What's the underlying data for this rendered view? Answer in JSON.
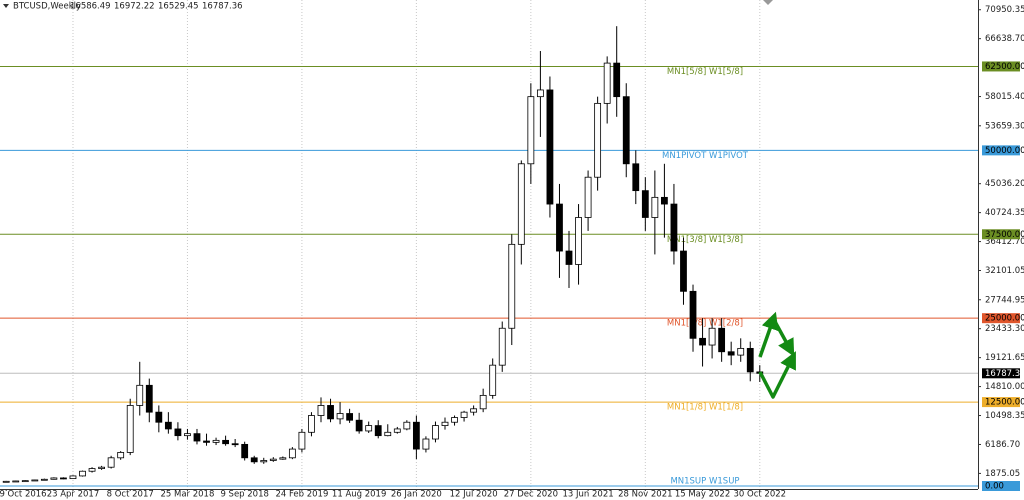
{
  "chart_data": {
    "type": "candlestick",
    "header": {
      "symbol": "BTCUSD,Weekly",
      "ohlc": [
        16586.49,
        16972.22,
        16529.45,
        16787.36
      ]
    },
    "x": [
      0,
      4,
      8,
      12,
      16,
      20,
      24,
      28,
      32,
      36,
      40,
      44,
      48,
      52,
      56,
      60,
      64,
      68,
      72,
      76,
      80,
      84,
      88,
      92,
      96,
      100,
      104,
      108,
      112,
      116,
      120,
      124,
      128,
      132,
      136,
      140,
      144,
      148,
      152,
      156,
      160,
      164,
      168,
      172,
      176,
      180,
      184,
      188,
      192,
      196,
      200,
      204,
      208,
      212,
      216,
      220,
      224,
      228,
      232,
      236,
      240,
      244,
      248,
      252,
      256,
      260,
      264,
      268,
      272,
      276,
      280,
      284,
      288,
      292,
      296,
      300,
      304,
      308,
      312,
      316
    ],
    "open": [
      650,
      700,
      750,
      800,
      900,
      1000,
      1200,
      1100,
      1500,
      2200,
      2600,
      2800,
      4200,
      5000,
      12000,
      15000,
      11000,
      9500,
      8500,
      7500,
      7800,
      6700,
      6500,
      6800,
      6300,
      6200,
      4200,
      3600,
      3800,
      4000,
      4200,
      5500,
      8000,
      10500,
      12000,
      10000,
      10800,
      9800,
      8200,
      9000,
      7500,
      8000,
      8500,
      9500,
      5500,
      7000,
      9000,
      9500,
      10200,
      11000,
      11500,
      13500,
      18000,
      23500,
      36000,
      48000,
      58000,
      59000,
      42000,
      35000,
      33000,
      40000,
      46000,
      57000,
      63000,
      58000,
      48000,
      44000,
      40000,
      43000,
      42000,
      35000,
      29000,
      22000,
      21000,
      23500,
      20000,
      19500,
      20500,
      17000
    ],
    "high": [
      760,
      800,
      850,
      950,
      1100,
      1300,
      1300,
      1600,
      2300,
      2800,
      3000,
      4500,
      5200,
      13000,
      18500,
      16000,
      12000,
      11000,
      9500,
      8500,
      8500,
      7800,
      7200,
      7500,
      7000,
      6600,
      4500,
      4200,
      4300,
      4400,
      5800,
      8500,
      11000,
      13200,
      13000,
      12500,
      11500,
      10900,
      9600,
      9800,
      9200,
      8800,
      9800,
      10500,
      7400,
      9600,
      10200,
      10500,
      11200,
      12000,
      14500,
      19000,
      24500,
      37500,
      48500,
      60000,
      64800,
      61000,
      45000,
      38000,
      42000,
      47000,
      58000,
      64000,
      68500,
      60000,
      50000,
      46000,
      47000,
      48000,
      45000,
      37000,
      30000,
      25000,
      25000,
      25000,
      21500,
      22000,
      21500,
      18000
    ],
    "low": [
      620,
      650,
      700,
      780,
      850,
      950,
      1000,
      1050,
      1400,
      2000,
      2400,
      2600,
      3900,
      4600,
      10500,
      9500,
      8000,
      7800,
      6800,
      6900,
      6200,
      6000,
      6100,
      6000,
      5800,
      3800,
      3300,
      3300,
      3600,
      3900,
      4000,
      5000,
      7400,
      9500,
      9500,
      9200,
      9400,
      7800,
      7900,
      7100,
      7400,
      7800,
      8300,
      4000,
      5000,
      6500,
      8400,
      9000,
      9600,
      10500,
      11000,
      13000,
      17000,
      21000,
      33000,
      45000,
      52000,
      40000,
      31000,
      29500,
      30000,
      38000,
      44000,
      54000,
      55000,
      46000,
      42000,
      38000,
      34500,
      37000,
      33000,
      27000,
      20000,
      17800,
      19000,
      18500,
      18000,
      18500,
      15600,
      15500
    ],
    "close": [
      700,
      750,
      800,
      900,
      1000,
      1200,
      1100,
      1500,
      2200,
      2600,
      2800,
      4200,
      5000,
      12000,
      15000,
      11000,
      9500,
      8500,
      7500,
      7800,
      6700,
      6500,
      6800,
      6300,
      6200,
      4200,
      3600,
      3800,
      4000,
      4200,
      5500,
      8000,
      10500,
      12000,
      10000,
      10800,
      9800,
      8200,
      9000,
      7500,
      8000,
      8500,
      9500,
      5500,
      7000,
      9000,
      9500,
      10200,
      11000,
      11500,
      13500,
      18000,
      23500,
      36000,
      48000,
      58000,
      59000,
      42000,
      35000,
      33000,
      40000,
      46000,
      57000,
      63000,
      58000,
      48000,
      44000,
      40000,
      43000,
      42000,
      35000,
      29000,
      22000,
      21000,
      23500,
      20000,
      19500,
      20500,
      17000,
      16787.36
    ],
    "xlim": [
      -2.6,
      407.5
    ],
    "xticks": [
      {
        "value": 0,
        "label": "9 Oct 2016"
      },
      {
        "value": 28,
        "label": "23 Apr 2017"
      },
      {
        "value": 52,
        "label": "8 Oct 2017"
      },
      {
        "value": 76,
        "label": "25 Mar 2018"
      },
      {
        "value": 100,
        "label": "9 Sep 2018"
      },
      {
        "value": 124,
        "label": "24 Feb 2019"
      },
      {
        "value": 148,
        "label": "11 Aug 2019"
      },
      {
        "value": 172,
        "label": "26 Jan 2020"
      },
      {
        "value": 196,
        "label": "12 Jul 2020"
      },
      {
        "value": 220,
        "label": "27 Dec 2020"
      },
      {
        "value": 244,
        "label": "13 Jun 2021"
      },
      {
        "value": 268,
        "label": "28 Nov 2021"
      },
      {
        "value": 292,
        "label": "15 May 2022"
      },
      {
        "value": 316,
        "label": "30 Oct 2022"
      }
    ],
    "ylim": [
      0,
      72400
    ],
    "yticks": [
      {
        "value": 70950.35,
        "label": "70950.35"
      },
      {
        "value": 66638.7,
        "label": "66638.70"
      },
      {
        "value": 58015.4,
        "label": "58015.40"
      },
      {
        "value": 53659.3,
        "label": "53659.30"
      },
      {
        "value": 45036.2,
        "label": "45036.20"
      },
      {
        "value": 40724.35,
        "label": "40724.35"
      },
      {
        "value": 36412.7,
        "label": "36412.70"
      },
      {
        "value": 32101.05,
        "label": "32101.05"
      },
      {
        "value": 27744.95,
        "label": "27744.95"
      },
      {
        "value": 23433.3,
        "label": "23433.30"
      },
      {
        "value": 19121.65,
        "label": "19121.65"
      },
      {
        "value": 14810,
        "label": "14810.00"
      },
      {
        "value": 10498.35,
        "label": "10498.35"
      },
      {
        "value": 6186.7,
        "label": "6186.70"
      },
      {
        "value": 1875.05,
        "label": "1875.05"
      }
    ],
    "levels": [
      {
        "value": 62500,
        "label": "MN1[5/8] W1[5/8]",
        "price_label": "62500.00",
        "color": "#6b8e23"
      },
      {
        "value": 50000,
        "label": "MN1PIVOT W1PIVOT",
        "price_label": "50000.00",
        "color": "#3a9ad9"
      },
      {
        "value": 37500,
        "label": "MN1[3/8] W1[3/8]",
        "price_label": "37500.00",
        "color": "#6b8e23"
      },
      {
        "value": 25000,
        "label": "MN1[2/8] W1[2/8]",
        "price_label": "25000.00",
        "color": "#e0562c"
      },
      {
        "value": 12500,
        "label": "MN1[1/8] W1[1/8]",
        "price_label": "12500.00",
        "color": "#eeae2a"
      },
      {
        "value": 0,
        "label": "MN1SUP W1SUP",
        "price_label": "0.00",
        "color": "#3a9ad9"
      }
    ],
    "last_price": 16787.36
  }
}
